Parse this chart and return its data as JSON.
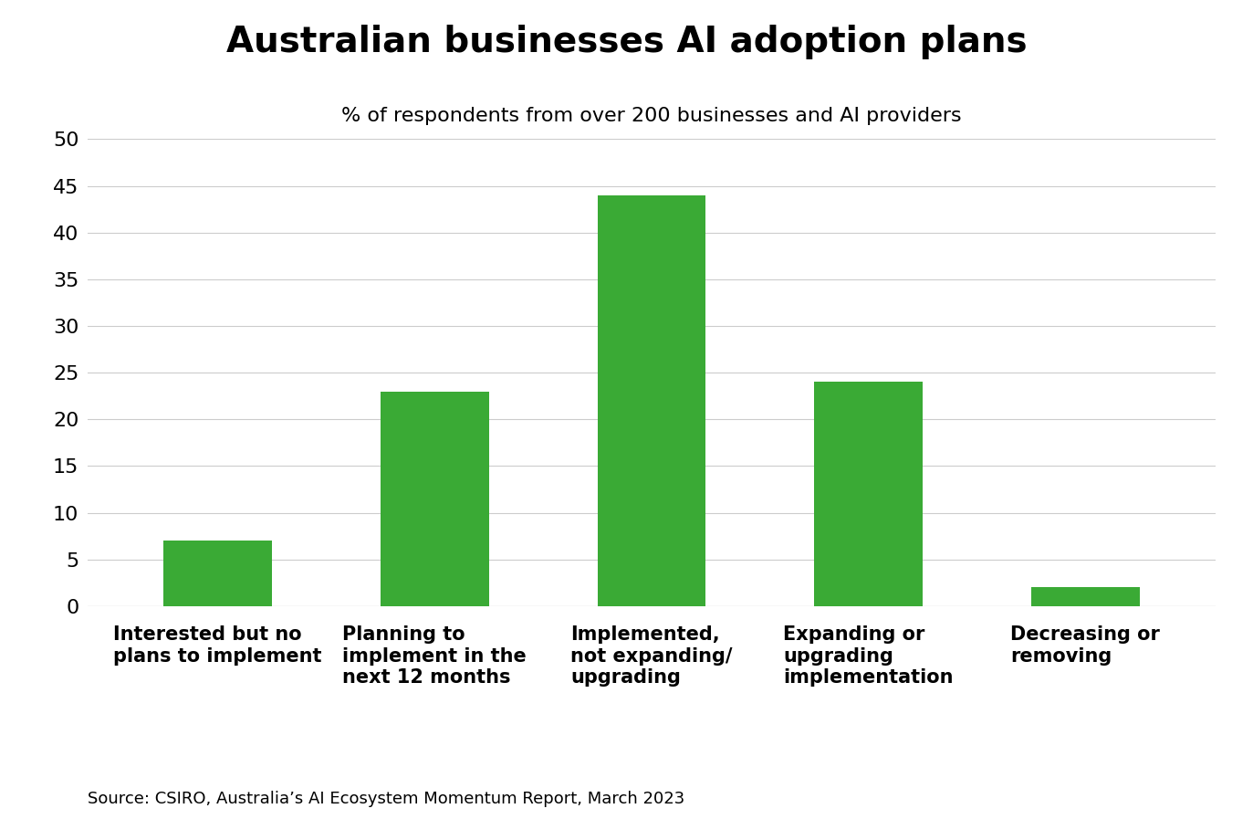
{
  "title": "Australian businesses AI adoption plans",
  "subtitle": "% of respondents from over 200 businesses and AI providers",
  "source": "Source: CSIRO, Australia’s AI Ecosystem Momentum Report, March 2023",
  "categories": [
    "Interested but no\nplans to implement",
    "Planning to\nimplement in the\nnext 12 months",
    "Implemented,\nnot expanding/\nupgrading",
    "Expanding or\nupgrading\nimplementation",
    "Decreasing or\nremoving"
  ],
  "values": [
    7,
    23,
    44,
    24,
    2
  ],
  "bar_color": "#3aaa35",
  "background_color": "#ffffff",
  "ylim": [
    0,
    50
  ],
  "yticks": [
    0,
    5,
    10,
    15,
    20,
    25,
    30,
    35,
    40,
    45,
    50
  ],
  "title_fontsize": 28,
  "subtitle_fontsize": 16,
  "tick_label_fontsize": 15,
  "ytick_fontsize": 16,
  "source_fontsize": 13,
  "bar_width": 0.5,
  "grid_color": "#cccccc",
  "grid_linewidth": 0.8
}
